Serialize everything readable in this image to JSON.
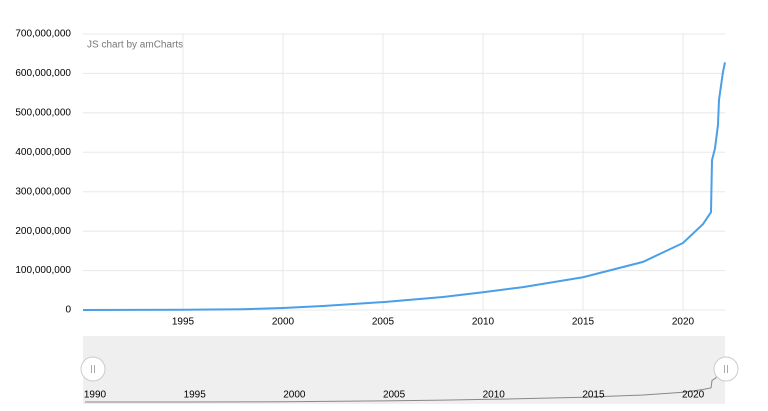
{
  "chart_data": {
    "type": "line",
    "credit": "JS chart by amCharts",
    "x": [
      1990,
      1995,
      1998,
      2000,
      2002,
      2005,
      2008,
      2010,
      2012,
      2015,
      2018,
      2020,
      2021,
      2021.4,
      2021.45,
      2021.6,
      2021.75,
      2021.8,
      2022,
      2022.1
    ],
    "series": [
      {
        "color": "#4a9fe9",
        "values": [
          0,
          500000,
          2000000,
          5000000,
          10000000,
          20000000,
          33000000,
          45000000,
          58000000,
          83000000,
          122000000,
          170000000,
          218000000,
          248000000,
          380000000,
          410000000,
          470000000,
          533000000,
          604000000,
          628000000
        ]
      }
    ],
    "xlim": [
      1990,
      2022.1
    ],
    "xticks": [
      1995,
      2000,
      2005,
      2010,
      2015,
      2020
    ],
    "ylim": [
      0,
      700000000
    ],
    "yticks": [
      0,
      {
        "value": 100000000,
        "label": "100,000,000"
      },
      {
        "value": 200000000,
        "label": "200,000,000"
      },
      {
        "value": 300000000,
        "label": "300,000,000"
      },
      {
        "value": 400000000,
        "label": "400,000,000"
      },
      {
        "value": 500000000,
        "label": "500,000,000"
      },
      {
        "value": 600000000,
        "label": "600,000,000"
      },
      {
        "value": 700000000,
        "label": "700,000,000"
      }
    ],
    "grid": true,
    "scrollbar_xticks": [
      1990,
      1995,
      2000,
      2005,
      2010,
      2015,
      2020
    ]
  }
}
